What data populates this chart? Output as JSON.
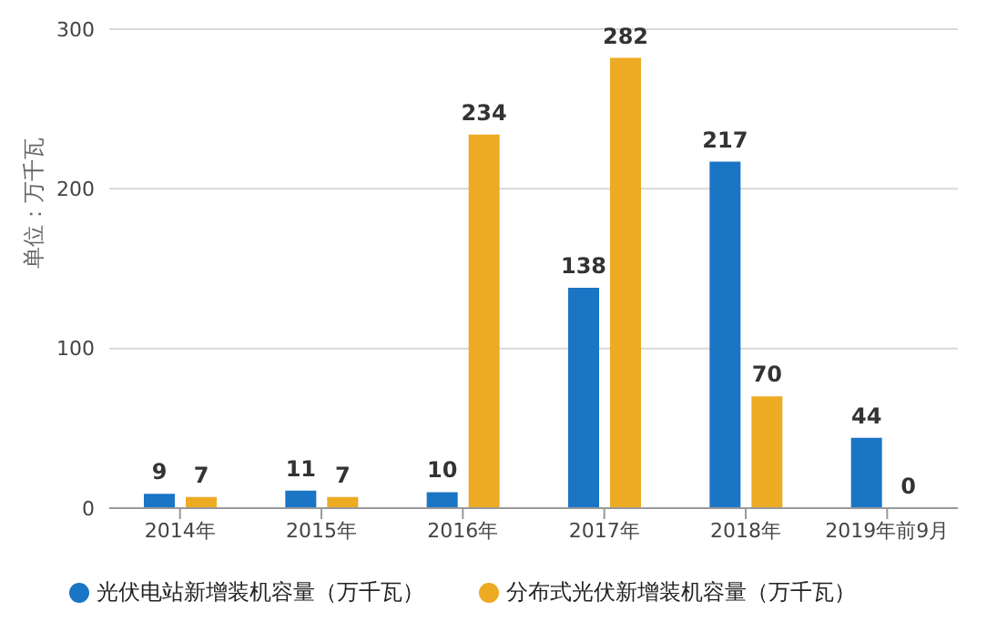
{
  "chart_data": {
    "type": "bar",
    "ylabel": "单位：万千瓦",
    "categories": [
      "2014年",
      "2015年",
      "2016年",
      "2017年",
      "2018年",
      "2019年前9月"
    ],
    "series": [
      {
        "name": "光伏电站新增装机容量（万千瓦）",
        "color": "#1a75c4",
        "values": [
          9,
          11,
          10,
          138,
          217,
          44
        ]
      },
      {
        "name": "分布式光伏新增装机容量（万千瓦）",
        "color": "#edaa23",
        "values": [
          7,
          7,
          234,
          282,
          70,
          0
        ]
      }
    ],
    "ylim": [
      0,
      300
    ],
    "yticks": [
      0,
      100,
      200,
      300
    ],
    "grid": "y",
    "legend": "bottom",
    "data_labels": true
  }
}
